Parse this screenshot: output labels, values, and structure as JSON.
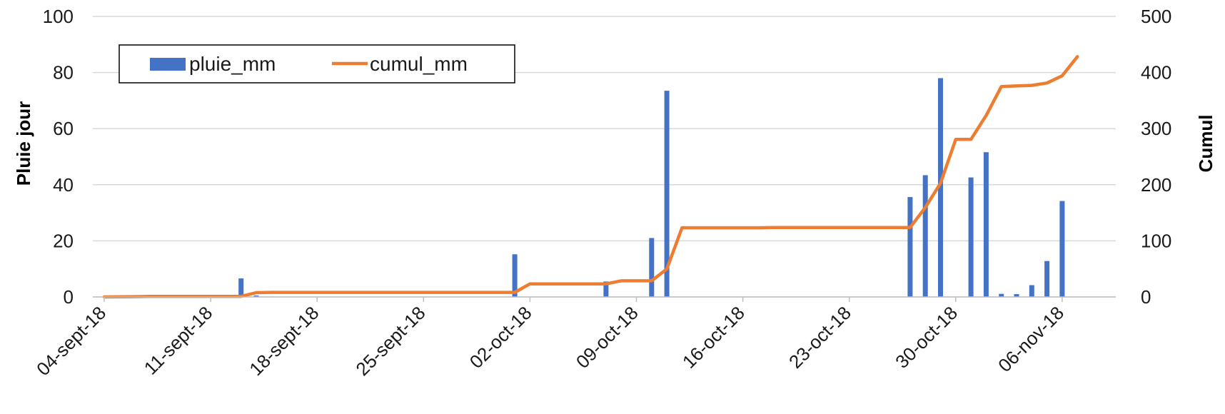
{
  "chart_data": {
    "type": "bar",
    "x_start": "04-sept-18",
    "x_ticks": [
      "04-sept-18",
      "11-sept-18",
      "18-sept-18",
      "25-sept-18",
      "02-oct-18",
      "09-oct-18",
      "16-oct-18",
      "23-oct-18",
      "30-oct-18",
      "06-nov-18"
    ],
    "ylabel_left": "Pluie jour",
    "ylabel_right": "Cumul",
    "ylim_left": [
      0,
      100
    ],
    "ylim_right": [
      0,
      500
    ],
    "yticks_left": [
      "0",
      "20",
      "40",
      "60",
      "80",
      "100"
    ],
    "yticks_right": [
      "0",
      "100",
      "200",
      "300",
      "400",
      "500"
    ],
    "grid": true,
    "legend_position": "top-left",
    "series": [
      {
        "name": "pluie_mm",
        "type": "bar",
        "axis": "left",
        "color": "#4472C4",
        "points": [
          {
            "x": "13-sept-18",
            "y": 6.6
          },
          {
            "x": "14-sept-18",
            "y": 0.5
          },
          {
            "x": "01-oct-18",
            "y": 15.2
          },
          {
            "x": "07-oct-18",
            "y": 5.5
          },
          {
            "x": "10-oct-18",
            "y": 21.0
          },
          {
            "x": "11-oct-18",
            "y": 73.5
          },
          {
            "x": "27-oct-18",
            "y": 35.6
          },
          {
            "x": "28-oct-18",
            "y": 43.4
          },
          {
            "x": "29-oct-18",
            "y": 78.0
          },
          {
            "x": "31-oct-18",
            "y": 42.6
          },
          {
            "x": "01-nov-18",
            "y": 51.6
          },
          {
            "x": "02-nov-18",
            "y": 1.1
          },
          {
            "x": "03-nov-18",
            "y": 1.0
          },
          {
            "x": "04-nov-18",
            "y": 4.2
          },
          {
            "x": "05-nov-18",
            "y": 12.8
          },
          {
            "x": "06-nov-18",
            "y": 34.2
          }
        ]
      },
      {
        "name": "cumul_mm",
        "type": "line",
        "axis": "right",
        "color": "#ED7D31",
        "points": [
          {
            "x": "04-sept-18",
            "y": 0
          },
          {
            "x": "06-sept-18",
            "y": 0.5
          },
          {
            "x": "07-sept-18",
            "y": 1
          },
          {
            "x": "13-sept-18",
            "y": 1
          },
          {
            "x": "14-sept-18",
            "y": 7.6
          },
          {
            "x": "15-sept-18",
            "y": 8.1
          },
          {
            "x": "01-oct-18",
            "y": 8.1
          },
          {
            "x": "02-oct-18",
            "y": 23.3
          },
          {
            "x": "07-oct-18",
            "y": 23.3
          },
          {
            "x": "08-oct-18",
            "y": 28.8
          },
          {
            "x": "10-oct-18",
            "y": 28.8
          },
          {
            "x": "11-oct-18",
            "y": 49.8
          },
          {
            "x": "12-oct-18",
            "y": 123.3
          },
          {
            "x": "17-oct-18",
            "y": 123.3
          },
          {
            "x": "18-oct-18",
            "y": 123.8
          },
          {
            "x": "27-oct-18",
            "y": 123.8
          },
          {
            "x": "28-oct-18",
            "y": 159.4
          },
          {
            "x": "29-oct-18",
            "y": 202.8
          },
          {
            "x": "30-oct-18",
            "y": 280.8
          },
          {
            "x": "31-oct-18",
            "y": 280.8
          },
          {
            "x": "01-nov-18",
            "y": 323.4
          },
          {
            "x": "02-nov-18",
            "y": 375.0
          },
          {
            "x": "03-nov-18",
            "y": 376.1
          },
          {
            "x": "04-nov-18",
            "y": 377.1
          },
          {
            "x": "05-nov-18",
            "y": 381.3
          },
          {
            "x": "06-nov-18",
            "y": 394.1
          },
          {
            "x": "07-nov-18",
            "y": 428.3
          }
        ]
      }
    ]
  }
}
